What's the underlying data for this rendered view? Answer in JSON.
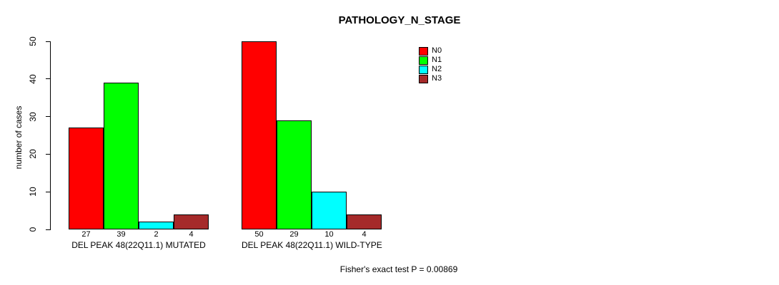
{
  "title": "PATHOLOGY_N_STAGE",
  "y_axis": {
    "label": "number of cases",
    "ticks": [
      0,
      10,
      20,
      30,
      40,
      50
    ]
  },
  "footer": "Fisher's exact test P = 0.00869",
  "chart_data": {
    "type": "bar",
    "title": "PATHOLOGY_N_STAGE",
    "xlabel": "",
    "ylabel": "number of cases",
    "ylim": [
      0,
      50
    ],
    "yticks": [
      0,
      10,
      20,
      30,
      40,
      50
    ],
    "grid": false,
    "legend_position": "top-right",
    "series": [
      "N0",
      "N1",
      "N2",
      "N3"
    ],
    "colors": [
      "#FF0000",
      "#00FF00",
      "#00FFFF",
      "#A52A2A"
    ],
    "groups": [
      {
        "label": "DEL PEAK 48(22Q11.1) MUTATED",
        "values": [
          27,
          39,
          2,
          4
        ]
      },
      {
        "label": "DEL PEAK 48(22Q11.1) WILD-TYPE",
        "values": [
          50,
          29,
          10,
          4
        ]
      }
    ],
    "bar_value_labels": [
      [
        27,
        39,
        2,
        4
      ],
      [
        50,
        29,
        10,
        4
      ]
    ],
    "annotation": "Fisher's exact test P = 0.00869"
  }
}
